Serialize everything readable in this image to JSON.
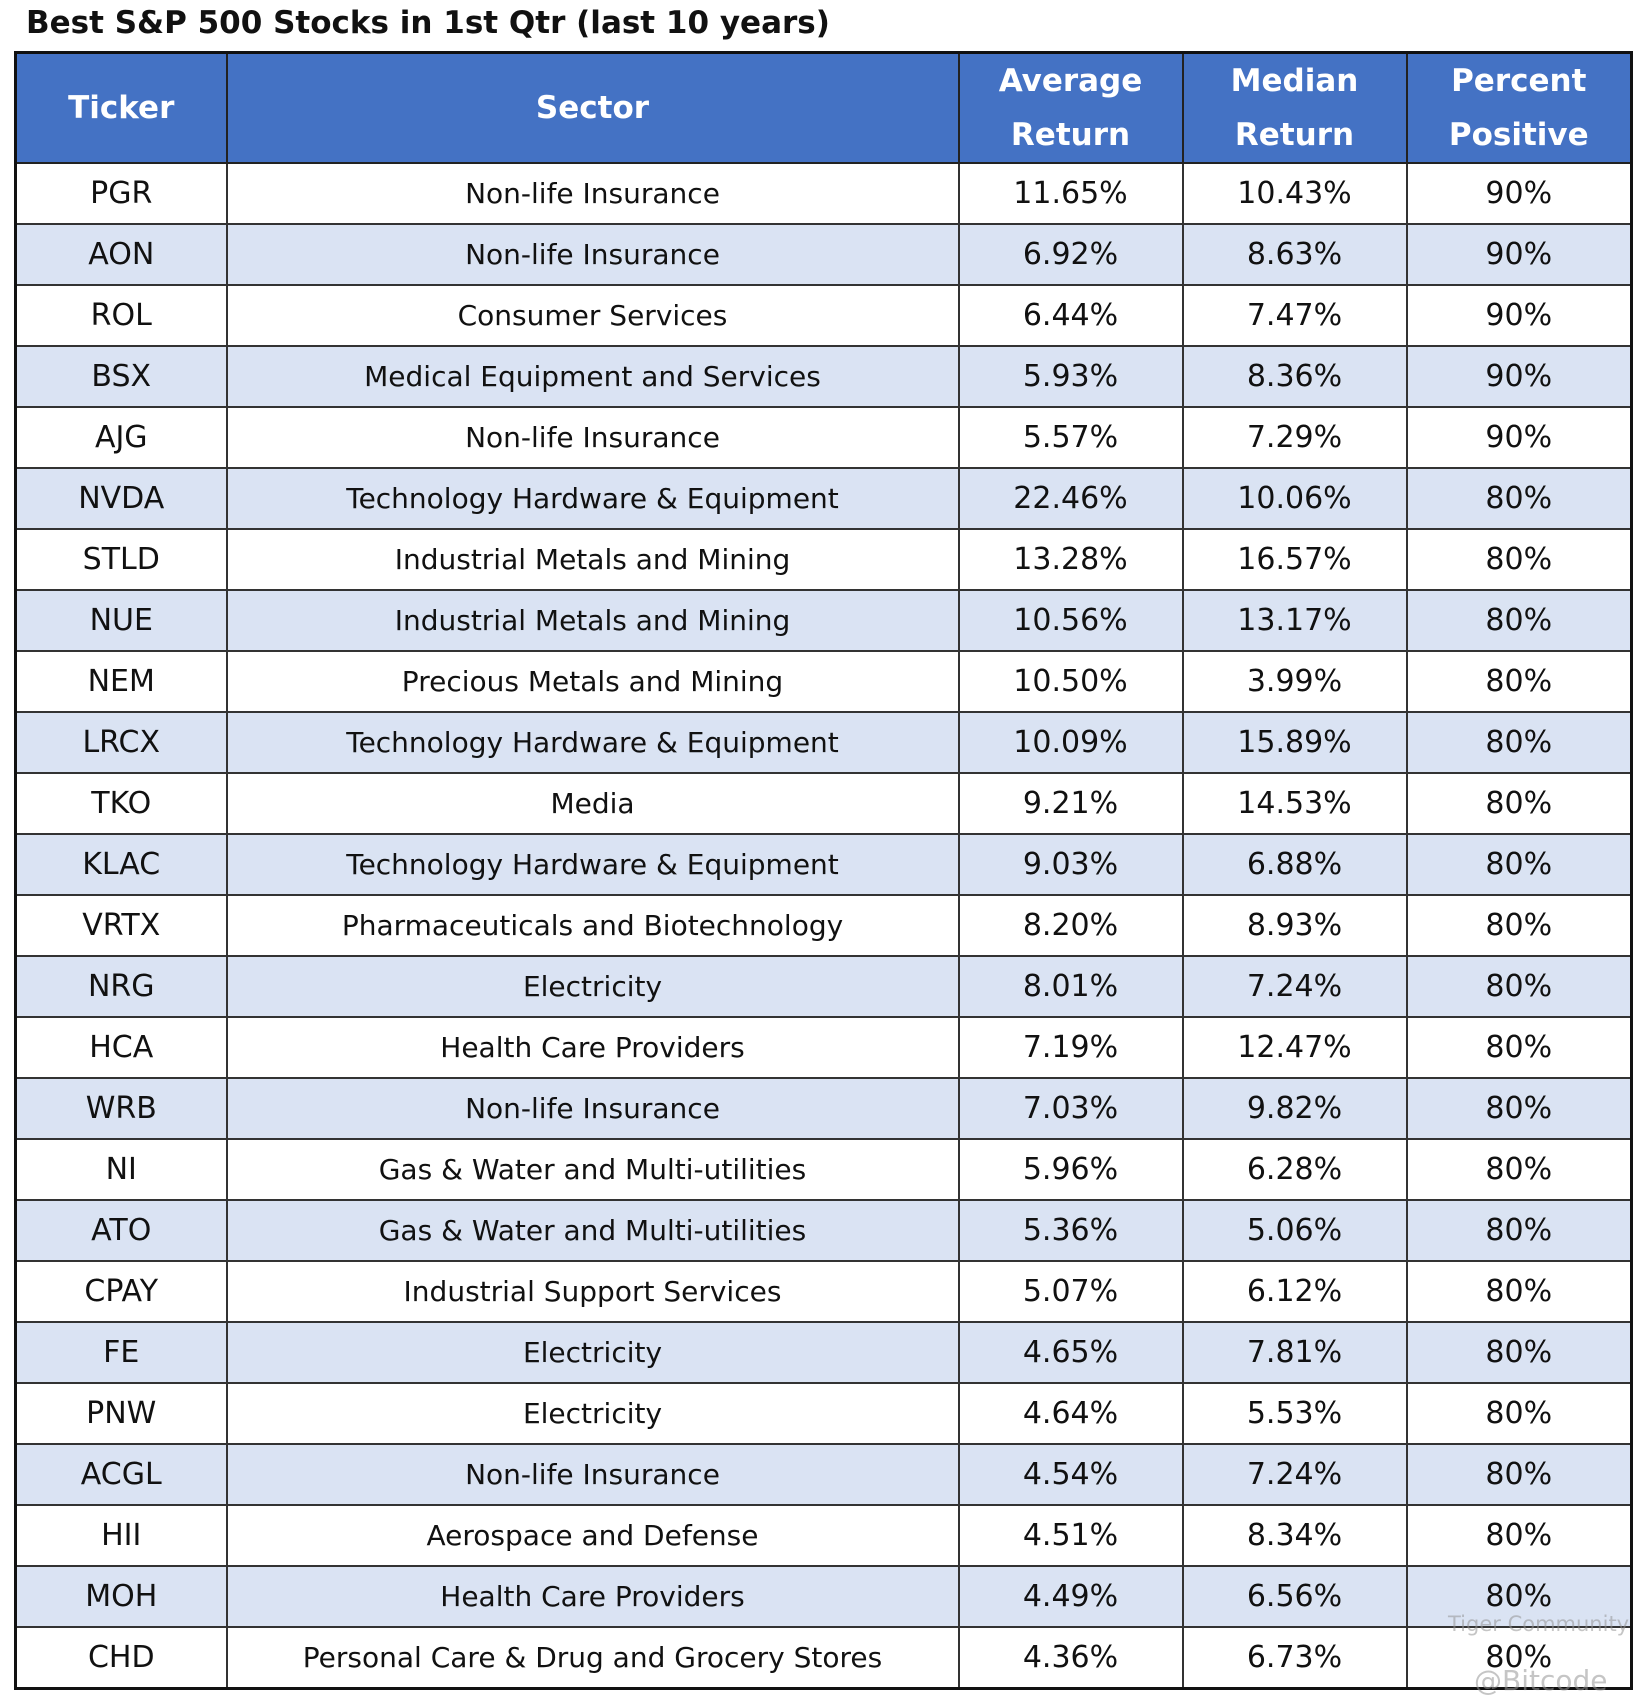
{
  "title": "Best S&P 500 Stocks in 1st Qtr (last 10 years)",
  "table": {
    "header": [
      "Ticker",
      "Sector",
      "Average Return",
      "Median Return",
      "Percent Positive"
    ],
    "rows": [
      [
        "PGR",
        "Non-life Insurance",
        "11.65%",
        "10.43%",
        "90%"
      ],
      [
        "AON",
        "Non-life Insurance",
        "6.92%",
        "8.63%",
        "90%"
      ],
      [
        "ROL",
        "Consumer Services",
        "6.44%",
        "7.47%",
        "90%"
      ],
      [
        "BSX",
        "Medical Equipment and Services",
        "5.93%",
        "8.36%",
        "90%"
      ],
      [
        "AJG",
        "Non-life Insurance",
        "5.57%",
        "7.29%",
        "90%"
      ],
      [
        "NVDA",
        "Technology Hardware & Equipment",
        "22.46%",
        "10.06%",
        "80%"
      ],
      [
        "STLD",
        "Industrial Metals and Mining",
        "13.28%",
        "16.57%",
        "80%"
      ],
      [
        "NUE",
        "Industrial Metals and Mining",
        "10.56%",
        "13.17%",
        "80%"
      ],
      [
        "NEM",
        "Precious Metals and Mining",
        "10.50%",
        "3.99%",
        "80%"
      ],
      [
        "LRCX",
        "Technology Hardware & Equipment",
        "10.09%",
        "15.89%",
        "80%"
      ],
      [
        "TKO",
        "Media",
        "9.21%",
        "14.53%",
        "80%"
      ],
      [
        "KLAC",
        "Technology Hardware & Equipment",
        "9.03%",
        "6.88%",
        "80%"
      ],
      [
        "VRTX",
        "Pharmaceuticals and Biotechnology",
        "8.20%",
        "8.93%",
        "80%"
      ],
      [
        "NRG",
        "Electricity",
        "8.01%",
        "7.24%",
        "80%"
      ],
      [
        "HCA",
        "Health Care Providers",
        "7.19%",
        "12.47%",
        "80%"
      ],
      [
        "WRB",
        "Non-life Insurance",
        "7.03%",
        "9.82%",
        "80%"
      ],
      [
        "NI",
        "Gas & Water and Multi-utilities",
        "5.96%",
        "6.28%",
        "80%"
      ],
      [
        "ATO",
        "Gas & Water and Multi-utilities",
        "5.36%",
        "5.06%",
        "80%"
      ],
      [
        "CPAY",
        "Industrial Support Services",
        "5.07%",
        "6.12%",
        "80%"
      ],
      [
        "FE",
        "Electricity",
        "4.65%",
        "7.81%",
        "80%"
      ],
      [
        "PNW",
        "Electricity",
        "4.64%",
        "5.53%",
        "80%"
      ],
      [
        "ACGL",
        "Non-life Insurance",
        "4.54%",
        "7.24%",
        "80%"
      ],
      [
        "HII",
        "Aerospace and Defense",
        "4.51%",
        "8.34%",
        "80%"
      ],
      [
        "MOH",
        "Health Care Providers",
        "4.49%",
        "6.56%",
        "80%"
      ],
      [
        "CHD",
        "Personal Care & Drug and Grocery Stores",
        "4.36%",
        "6.73%",
        "80%"
      ]
    ]
  },
  "watermark": [
    "Tiger Community",
    "@Bitcode"
  ]
}
